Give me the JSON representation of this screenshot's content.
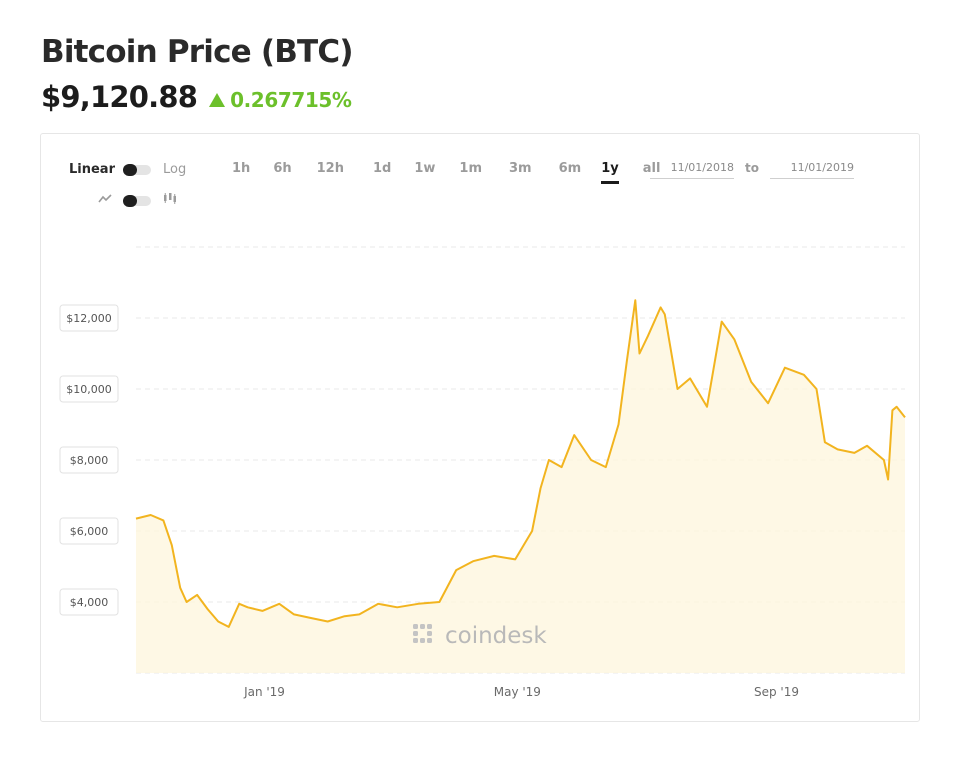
{
  "header": {
    "title": "Bitcoin Price (BTC)",
    "price": "$9,120.88",
    "change": "0.267715%",
    "change_color": "#6cc02b"
  },
  "controls": {
    "scale_linear": "Linear",
    "scale_log": "Log",
    "ranges": [
      "1h",
      "6h",
      "12h",
      "1d",
      "1w",
      "1m",
      "3m",
      "6m",
      "1y",
      "all"
    ],
    "active_range": "1y",
    "date_from": "11/01/2018",
    "date_to_label": "to",
    "date_to": "11/01/2019",
    "icons": [
      "line-chart-icon",
      "candlestick-icon"
    ]
  },
  "watermark": "coindesk",
  "chart_data": {
    "type": "area",
    "series": [
      {
        "color": "#f2b41f",
        "x": [
          "2018-11-01",
          "2018-11-08",
          "2018-11-14",
          "2018-11-18",
          "2018-11-22",
          "2018-11-25",
          "2018-11-30",
          "2018-12-05",
          "2018-12-10",
          "2018-12-15",
          "2018-12-20",
          "2018-12-24",
          "2018-12-31",
          "2019-01-08",
          "2019-01-15",
          "2019-01-23",
          "2019-01-31",
          "2019-02-08",
          "2019-02-15",
          "2019-02-24",
          "2019-03-05",
          "2019-03-15",
          "2019-03-25",
          "2019-04-02",
          "2019-04-10",
          "2019-04-20",
          "2019-04-30",
          "2019-05-08",
          "2019-05-12",
          "2019-05-16",
          "2019-05-22",
          "2019-05-28",
          "2019-06-05",
          "2019-06-12",
          "2019-06-18",
          "2019-06-22",
          "2019-06-26",
          "2019-06-28",
          "2019-07-02",
          "2019-07-08",
          "2019-07-10",
          "2019-07-16",
          "2019-07-22",
          "2019-07-30",
          "2019-08-06",
          "2019-08-12",
          "2019-08-20",
          "2019-08-28",
          "2019-09-05",
          "2019-09-14",
          "2019-09-20",
          "2019-09-24",
          "2019-09-30",
          "2019-10-08",
          "2019-10-14",
          "2019-10-22",
          "2019-10-24",
          "2019-10-26",
          "2019-10-28",
          "2019-11-01"
        ],
        "y": [
          6350,
          6450,
          6300,
          5600,
          4400,
          4000,
          4200,
          3800,
          3450,
          3300,
          3950,
          3850,
          3750,
          3950,
          3650,
          3550,
          3450,
          3600,
          3650,
          3950,
          3850,
          3950,
          4000,
          4900,
          5150,
          5300,
          5200,
          6000,
          7200,
          8000,
          7800,
          8700,
          8000,
          7800,
          9000,
          10800,
          12500,
          11000,
          11500,
          12300,
          12100,
          10000,
          10300,
          9500,
          11900,
          11400,
          10200,
          9600,
          10600,
          10400,
          10000,
          8500,
          8300,
          8200,
          8400,
          8000,
          7450,
          9400,
          9500,
          9200
        ]
      }
    ],
    "yticks": [
      "$4,000",
      "$6,000",
      "$8,000",
      "$10,000",
      "$12,000"
    ],
    "xticks": [
      "Jan '19",
      "May '19",
      "Sep '19"
    ],
    "ylim": [
      2000,
      14000
    ],
    "grid": true
  }
}
